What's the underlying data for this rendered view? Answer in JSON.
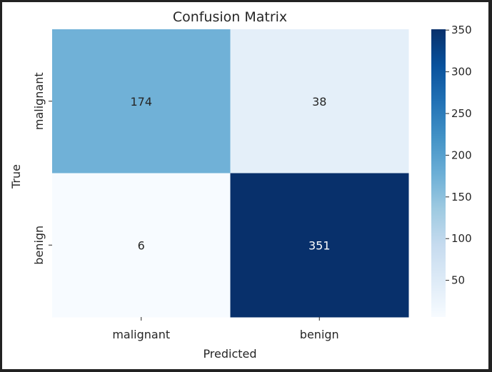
{
  "chart_data": {
    "type": "heatmap",
    "title": "Confusion Matrix",
    "xlabel": "Predicted",
    "ylabel": "True",
    "x_categories": [
      "malignant",
      "benign"
    ],
    "y_categories": [
      "malignant",
      "benign"
    ],
    "values": [
      [
        174,
        38
      ],
      [
        6,
        351
      ]
    ],
    "colormap": "Blues",
    "colorbar": {
      "min": 6,
      "max": 351,
      "ticks": [
        50,
        100,
        150,
        200,
        250,
        300,
        350
      ]
    }
  },
  "colors": {
    "frame_border": "#222222",
    "background": "#ffffff",
    "text_dark": "#262626",
    "text_light": "#ffffff"
  }
}
